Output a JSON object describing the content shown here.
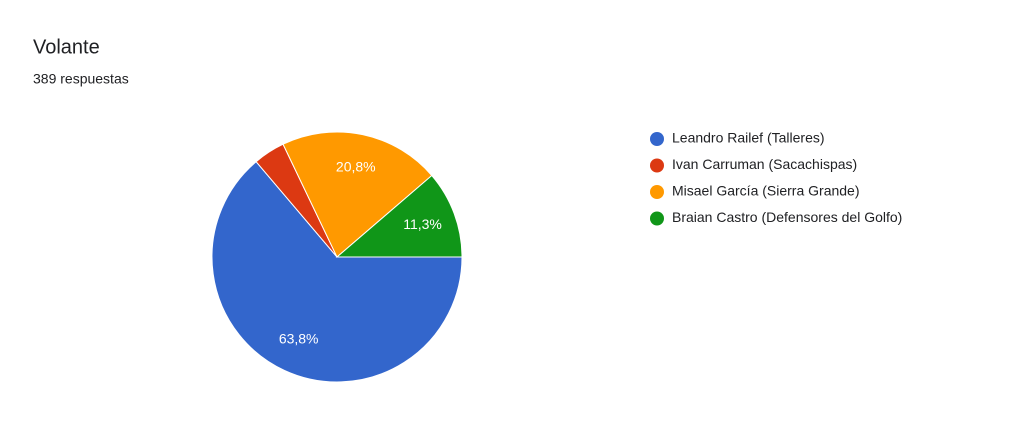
{
  "chart_data": {
    "type": "pie",
    "title": "Volante",
    "subtitle": "389 respuestas",
    "categories": [
      "Leandro Railef (Talleres)",
      "Ivan Carruman (Sacachispas)",
      "Misael García (Sierra Grande)",
      "Braian Castro (Defensores del Golfo)"
    ],
    "values": [
      63.8,
      4.1,
      20.8,
      11.3
    ],
    "value_labels": [
      "63,8%",
      null,
      "20,8%",
      "11,3%"
    ],
    "colors": [
      "#3366cc",
      "#dc3912",
      "#ff9900",
      "#109618"
    ],
    "legend": "right"
  }
}
